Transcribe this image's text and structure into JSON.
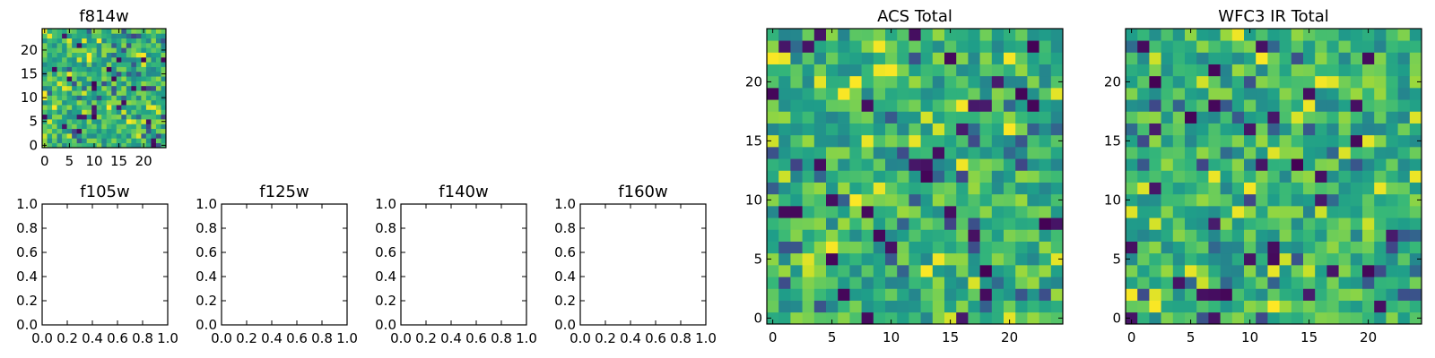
{
  "chart_data": [
    {
      "type": "heatmap",
      "title": "f814w",
      "x_ticks": [
        0,
        5,
        10,
        15,
        20
      ],
      "y_ticks": [
        0,
        5,
        10,
        15,
        20
      ],
      "xlim": [
        -0.5,
        24.5
      ],
      "ylim": [
        -0.5,
        24.5
      ],
      "grid_size": 25,
      "colormap": "viridis",
      "grid": false,
      "legend": "none"
    },
    {
      "type": "scatter",
      "title": "f105w",
      "x_tick_labels": [
        "0.0",
        "0.2",
        "0.4",
        "0.6",
        "0.8",
        "1.0"
      ],
      "y_tick_labels": [
        "0.0",
        "0.2",
        "0.4",
        "0.6",
        "0.8",
        "1.0"
      ],
      "xlim": [
        0,
        1
      ],
      "ylim": [
        0,
        1
      ],
      "values": [],
      "grid": false,
      "legend": "none"
    },
    {
      "type": "scatter",
      "title": "f125w",
      "x_tick_labels": [
        "0.0",
        "0.2",
        "0.4",
        "0.6",
        "0.8",
        "1.0"
      ],
      "y_tick_labels": [
        "0.0",
        "0.2",
        "0.4",
        "0.6",
        "0.8",
        "1.0"
      ],
      "xlim": [
        0,
        1
      ],
      "ylim": [
        0,
        1
      ],
      "values": [],
      "grid": false,
      "legend": "none"
    },
    {
      "type": "scatter",
      "title": "f140w",
      "x_tick_labels": [
        "0.0",
        "0.2",
        "0.4",
        "0.6",
        "0.8",
        "1.0"
      ],
      "y_tick_labels": [
        "0.0",
        "0.2",
        "0.4",
        "0.6",
        "0.8",
        "1.0"
      ],
      "xlim": [
        0,
        1
      ],
      "ylim": [
        0,
        1
      ],
      "values": [],
      "grid": false,
      "legend": "none"
    },
    {
      "type": "scatter",
      "title": "f160w",
      "x_tick_labels": [
        "0.0",
        "0.2",
        "0.4",
        "0.6",
        "0.8",
        "1.0"
      ],
      "y_tick_labels": [
        "0.0",
        "0.2",
        "0.4",
        "0.6",
        "0.8",
        "1.0"
      ],
      "xlim": [
        0,
        1
      ],
      "ylim": [
        0,
        1
      ],
      "values": [],
      "grid": false,
      "legend": "none"
    },
    {
      "type": "heatmap",
      "title": "ACS Total",
      "x_ticks": [
        0,
        5,
        10,
        15,
        20
      ],
      "y_ticks": [
        0,
        5,
        10,
        15,
        20
      ],
      "xlim": [
        -0.5,
        24.5
      ],
      "ylim": [
        -0.5,
        24.5
      ],
      "grid_size": 25,
      "colormap": "viridis",
      "grid": false,
      "legend": "none"
    },
    {
      "type": "heatmap",
      "title": "WFC3 IR Total",
      "x_ticks": [
        0,
        5,
        10,
        15,
        20
      ],
      "y_ticks": [
        0,
        5,
        10,
        15,
        20
      ],
      "xlim": [
        -0.5,
        24.5
      ],
      "ylim": [
        -0.5,
        24.5
      ],
      "grid_size": 25,
      "colormap": "viridis",
      "grid": false,
      "legend": "none"
    }
  ]
}
